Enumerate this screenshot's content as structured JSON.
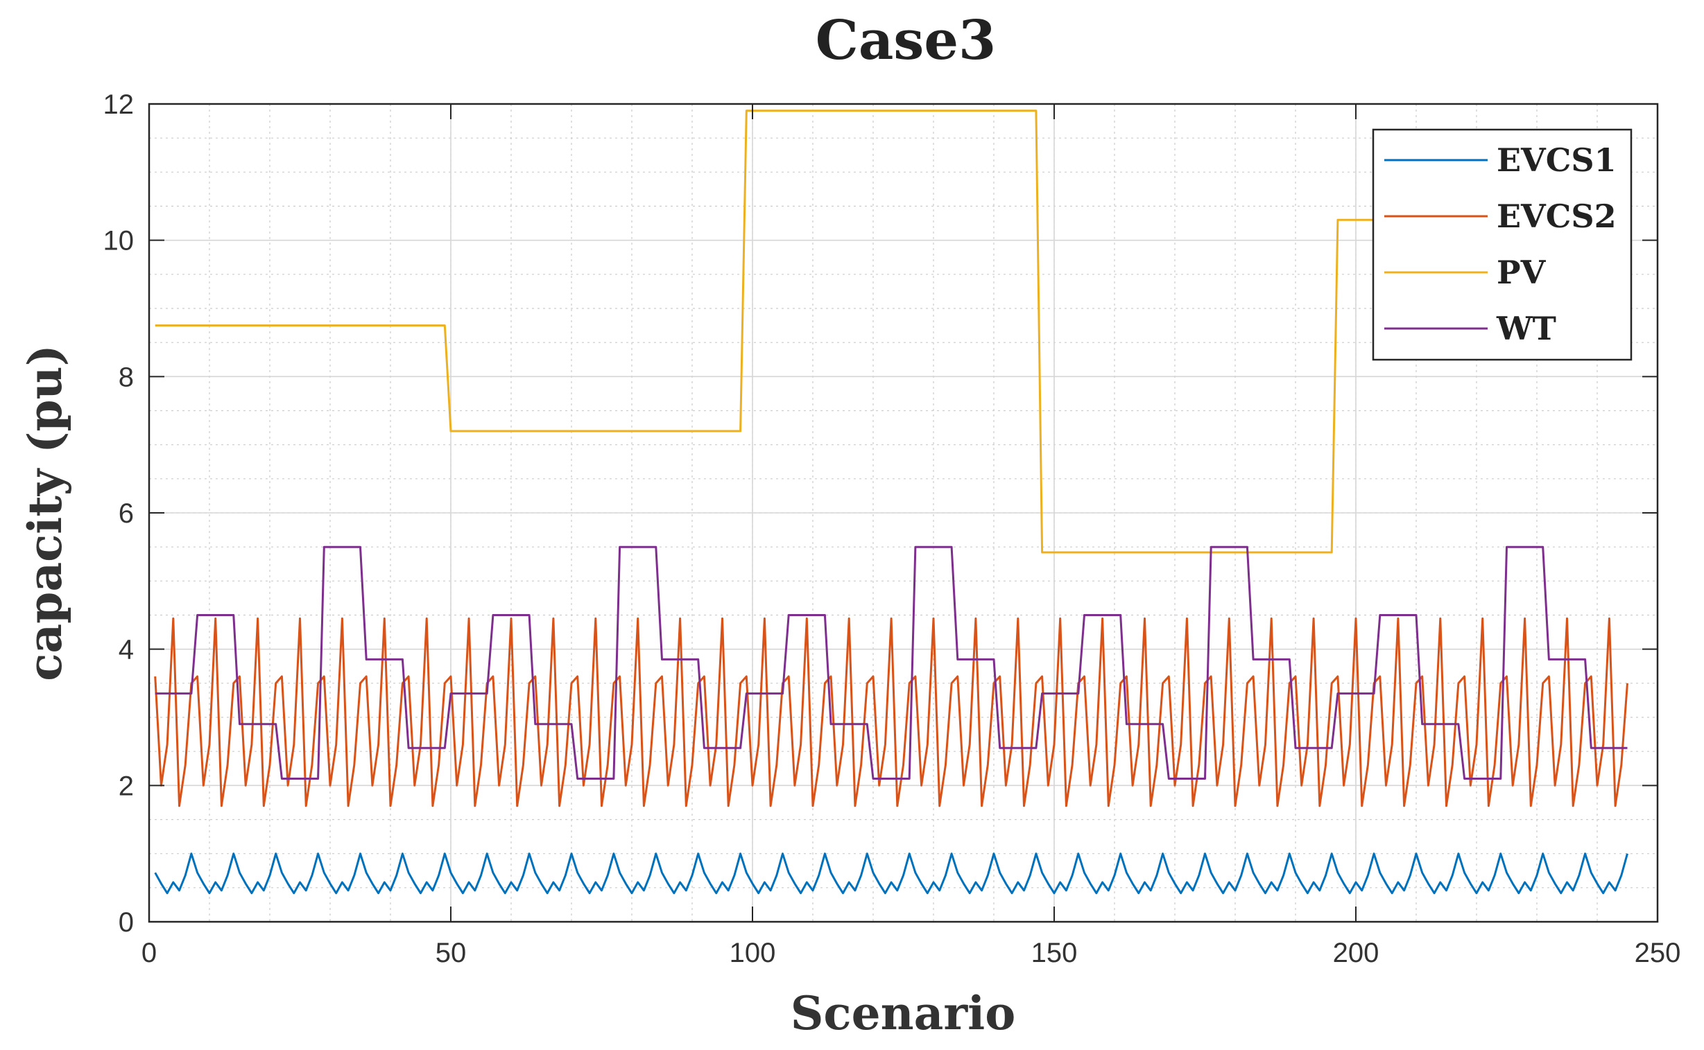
{
  "chart_data": {
    "type": "line",
    "title": "Case3",
    "xlabel": "Scenario",
    "ylabel": "capacity (pu)",
    "xlim": [
      0,
      250
    ],
    "ylim": [
      0,
      12
    ],
    "xticks": [
      0,
      50,
      100,
      150,
      200,
      250
    ],
    "yticks": [
      0,
      2,
      4,
      6,
      8,
      10,
      12
    ],
    "grid": true,
    "minor_grid": true,
    "legend_position": "top-right",
    "series": [
      {
        "name": "EVCS1",
        "color": "#0072BD",
        "pattern": "sawtooth",
        "period": 7,
        "x_start": 1,
        "x_end": 245,
        "wave": [
          0.72,
          0.56,
          0.42,
          0.58,
          0.46,
          0.68,
          1.0
        ]
      },
      {
        "name": "EVCS2",
        "color": "#D95319",
        "pattern": "sawtooth",
        "period": 7,
        "x_start": 1,
        "x_end": 245,
        "wave": [
          3.6,
          2.0,
          2.6,
          4.45,
          1.7,
          2.3,
          3.5
        ]
      },
      {
        "name": "PV",
        "color": "#EDB120",
        "pattern": "step",
        "x_end": 245,
        "steps": [
          {
            "from": 1,
            "value": 8.75
          },
          {
            "from": 50,
            "value": 7.2
          },
          {
            "from": 99,
            "value": 11.9
          },
          {
            "from": 148,
            "value": 5.42
          },
          {
            "from": 197,
            "value": 10.3
          }
        ]
      },
      {
        "name": "WT",
        "color": "#7E2F8E",
        "pattern": "step_cycle",
        "period": 49,
        "x_start": 1,
        "x_end": 245,
        "segments": [
          {
            "value": 3.35,
            "length": 7
          },
          {
            "value": 4.5,
            "length": 7
          },
          {
            "value": 2.9,
            "length": 7
          },
          {
            "value": 2.1,
            "length": 7
          },
          {
            "value": 5.5,
            "length": 7
          },
          {
            "value": 3.85,
            "length": 7
          },
          {
            "value": 2.55,
            "length": 7
          }
        ]
      }
    ]
  }
}
